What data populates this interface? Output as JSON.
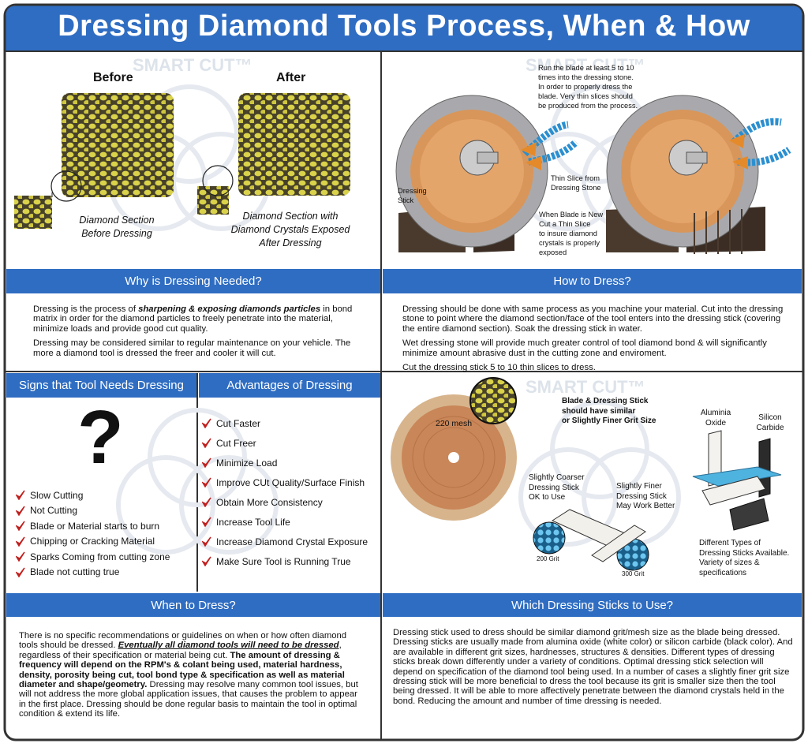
{
  "title": "Dressing Diamond Tools Process, When & How",
  "watermark": "SMART CUT™",
  "before_after": {
    "before_label": "Before",
    "after_label": "After",
    "caption_before": [
      "Diamond Section",
      "Before Dressing"
    ],
    "caption_after": [
      "Diamond Section with",
      "Diamond Crystals Exposed",
      "After Dressing"
    ]
  },
  "process": {
    "note": [
      "Run the blade at least 5 to 10",
      "times into the dressing stone.",
      "In order to properly dress the",
      "blade. Very thin slices should",
      "be produced from the process."
    ],
    "stick_label": [
      "Dressing",
      "Stick"
    ],
    "slice_label": [
      "Thin Slice from",
      "Dressing Stone"
    ],
    "new_blade_note": [
      "When Blade is New",
      "Cut a Thin Slice",
      "to insure diamond",
      "crystals is properly",
      "exposed"
    ]
  },
  "why": {
    "heading": "Why is Dressing Needed?",
    "paragraphs": [
      [
        {
          "text": "Dressing is the process of "
        },
        {
          "text": "sharpening & exposing diamonds particles",
          "style": "bold-italic"
        },
        {
          "text": " in bond matrix in order for the diamond particles to freely penetrate into the material, minimize loads and provide good cut quality."
        }
      ],
      [
        {
          "text": "Dressing may be considered similar to regular maintenance on your vehicle. The more a diamond tool is dressed the freer and cooler it will cut."
        }
      ]
    ]
  },
  "how": {
    "heading": "How to Dress?",
    "paragraphs": [
      [
        {
          "text": "Dressing should be done with same process as you machine your material. Cut into the dressing stone to point where the diamond section/face of the tool enters into the dressing stick (covering the entire diamond section). Soak the dressing stick in water."
        }
      ],
      [
        {
          "text": "Wet dressing stone will provide much greater control of tool diamond bond & will significantly minimize amount abrasive dust in the cutting zone and enviroment."
        }
      ],
      [
        {
          "text": "Cut the dressing stick 5 to 10 thin slices to dress."
        }
      ]
    ]
  },
  "signs": {
    "heading": "Signs that Tool Needs Dressing",
    "icon": "?",
    "items": [
      "Slow Cutting",
      "Not Cutting",
      "Blade or Material starts to burn",
      "Chipping or Cracking Material",
      "Sparks Coming from cutting zone",
      "Blade not cutting true"
    ]
  },
  "advantages": {
    "heading": "Advantages of Dressing",
    "items": [
      "Cut Faster",
      "Cut Freer",
      "Minimize Load",
      "Improve CUt Quality/Surface Finish",
      "Obtain More Consistency",
      "Increase Tool Life",
      "Increase Diamond Crystal Exposure",
      "Make Sure Tool is Running True"
    ]
  },
  "sticks": {
    "mesh_label": "220 mesh",
    "grit_note": [
      "Blade & Dressing Stick",
      "should have similar",
      "or Slightly Finer Grit Size"
    ],
    "aluminia": [
      "Aluminia",
      "Oxide"
    ],
    "silicon": [
      "Silicon",
      "Carbide"
    ],
    "coarser": [
      "Slightly Coarser",
      "Dressing Stick",
      "OK to Use"
    ],
    "finer": [
      "Slightly Finer",
      "Dressing Stick",
      "May Work Better"
    ],
    "grit_200": "200 Grit",
    "grit_300": "300 Grit",
    "types_note": [
      "Different Types of",
      "Dressing Sticks Available.",
      "Variety of sizes &",
      "specifications"
    ]
  },
  "when": {
    "heading": "When to Dress?",
    "paragraphs": [
      [
        {
          "text": "There is no specific recommendations or guidelines on when or how often diamond tools should be dressed. "
        },
        {
          "text": "Eventually all diamond tools will need to be dressed",
          "style": "bold-italic-underline"
        },
        {
          "text": ", regardless of their specification or material being cut. "
        },
        {
          "text": "The amount of dressing & frequency will depend on the RPM's & colant being used, material hardness, density, porosity being cut, tool bond type & specification as well as material diameter and shape/geometry.",
          "style": "bold"
        },
        {
          "text": " Dressing may resolve many common tool issues, but will not address the more global application issues, that causes the problem to appear in the first place. Dressing should be done regular basis to maintain the tool in optimal condition & extend its life."
        }
      ]
    ]
  },
  "which": {
    "heading": "Which Dressing Sticks to Use?",
    "paragraphs": [
      [
        {
          "text": "Dressing stick used to dress should be similar diamond grit/mesh size as the blade being dressed. Dressing sticks are usually made from alumina oxide (white color) or silicon carbide (black color). And are available in different grit sizes, hardnesses, structures & densities. Different types of dressing sticks break down differently under a variety of conditions. Optimal dressing stick selection will depend on specification of the diamond tool being used. In a number of cases a slightly finer grit size dressing stick will be more beneficial to dress the tool because its grit is smaller size then the tool being dressed. It will be able to more affectively penetrate between the diamond crystals held in the bond. Reducing the amount and number of time dressing is needed."
        }
      ]
    ]
  }
}
